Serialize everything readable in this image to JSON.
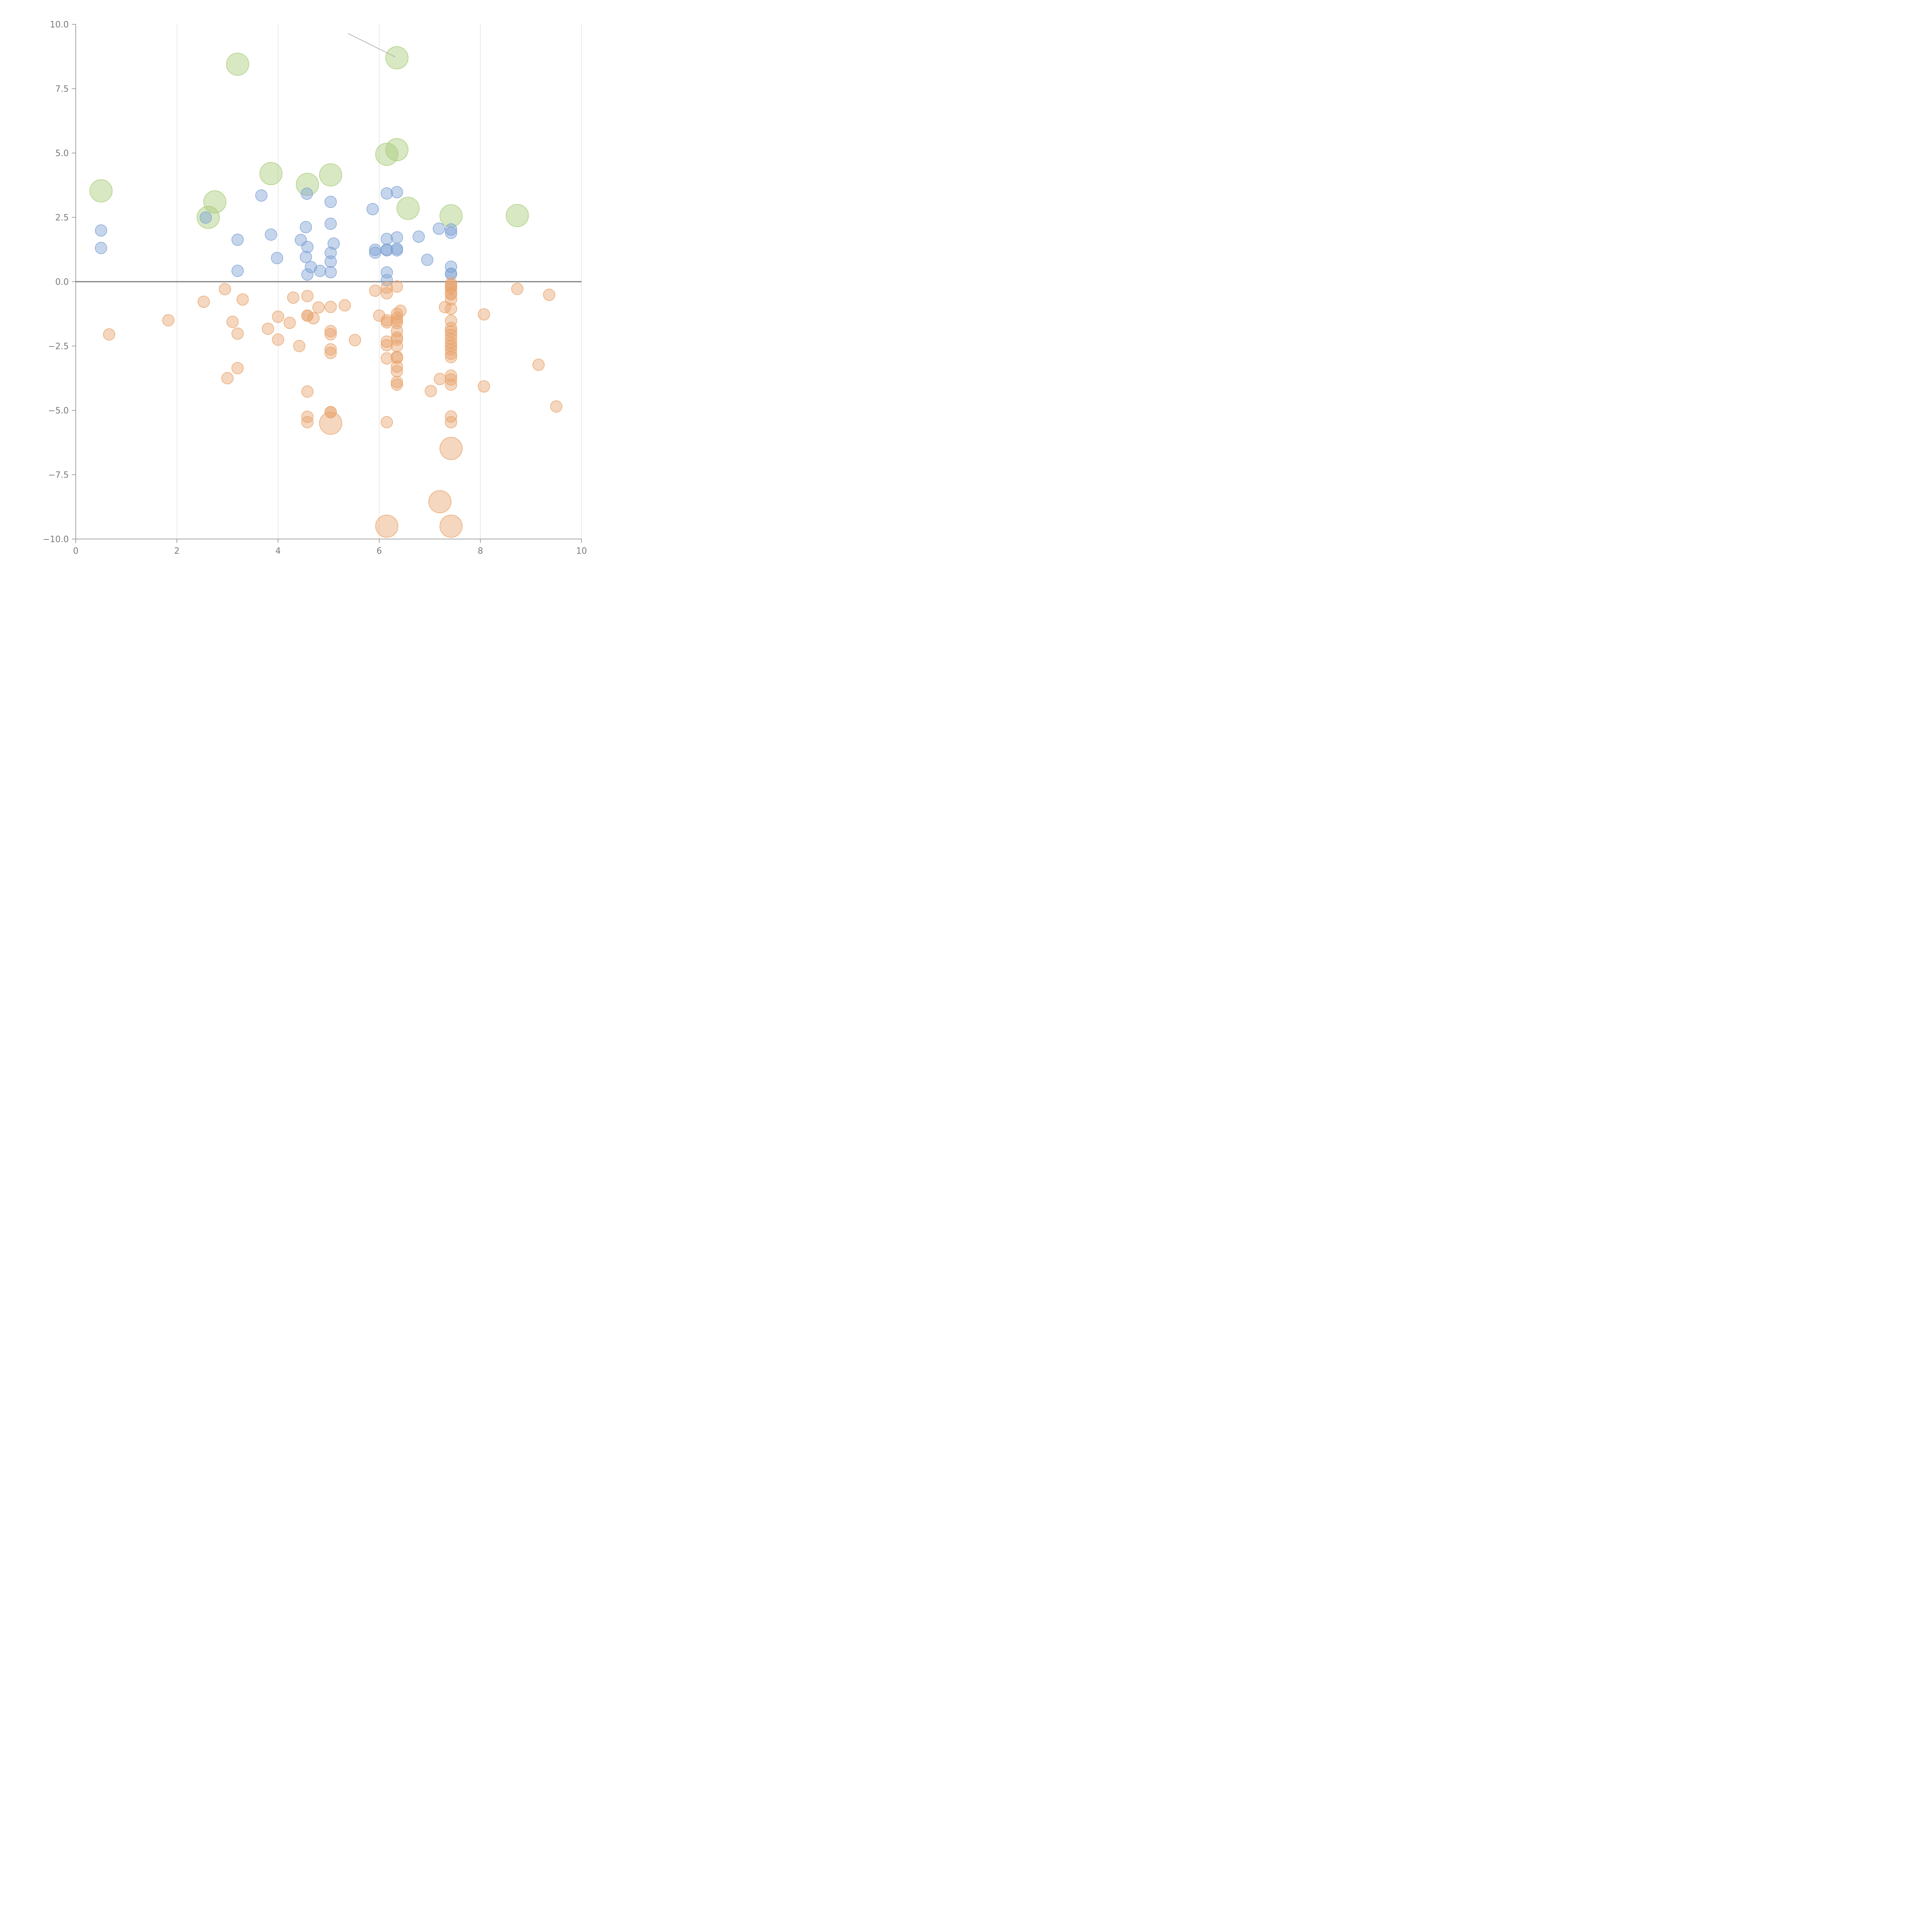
{
  "chart_data": {
    "type": "scatter",
    "title": "",
    "xlabel": "",
    "ylabel": "",
    "xlim": [
      0,
      10
    ],
    "ylim": [
      -10,
      10
    ],
    "x_ticks": [
      0,
      2,
      4,
      6,
      8,
      10
    ],
    "x_tick_labels": [
      "0",
      "2",
      "4",
      "6",
      "8",
      "10"
    ],
    "y_ticks": [
      10,
      7.5,
      5,
      2.5,
      0,
      -2.5,
      -5,
      -7.5,
      -10
    ],
    "y_tick_labels": [
      "10.0",
      "7.5",
      "5.0",
      "2.5",
      "0.0",
      "−2.5",
      "−5.0",
      "−7.5",
      "−10.0"
    ],
    "grid": "vertical",
    "zero_line": true,
    "bubble_opacity": 0.45,
    "series": [
      {
        "color": "#a9cc79",
        "size": "large",
        "points": [
          [
            0.5,
            3.53
          ],
          [
            3.2,
            8.45
          ],
          [
            2.75,
            3.1
          ],
          [
            2.62,
            2.5
          ],
          [
            3.86,
            4.2
          ],
          [
            4.58,
            3.78
          ],
          [
            5.04,
            4.15
          ],
          [
            6.35,
            8.7
          ],
          [
            6.35,
            5.13
          ],
          [
            6.15,
            4.95
          ],
          [
            6.57,
            2.85
          ],
          [
            7.42,
            2.56
          ],
          [
            8.73,
            2.57
          ]
        ]
      },
      {
        "color": "#7ea2d4",
        "size": "small",
        "points": [
          [
            0.5,
            1.99
          ],
          [
            0.5,
            1.31
          ],
          [
            2.57,
            2.49
          ],
          [
            3.2,
            1.63
          ],
          [
            3.2,
            0.42
          ],
          [
            3.67,
            3.35
          ],
          [
            3.86,
            1.83
          ],
          [
            3.98,
            0.92
          ],
          [
            4.45,
            1.62
          ],
          [
            4.55,
            2.12
          ],
          [
            4.57,
            3.42
          ],
          [
            4.58,
            1.35
          ],
          [
            4.55,
            0.96
          ],
          [
            4.65,
            0.57
          ],
          [
            4.58,
            0.28
          ],
          [
            4.83,
            0.42
          ],
          [
            5.04,
            3.1
          ],
          [
            5.04,
            2.25
          ],
          [
            5.1,
            1.48
          ],
          [
            5.04,
            1.12
          ],
          [
            5.04,
            0.78
          ],
          [
            5.04,
            0.37
          ],
          [
            5.87,
            2.82
          ],
          [
            5.92,
            1.24
          ],
          [
            5.92,
            1.13
          ],
          [
            6.15,
            3.43
          ],
          [
            6.15,
            1.66
          ],
          [
            6.15,
            1.25
          ],
          [
            6.15,
            1.22
          ],
          [
            6.15,
            0.36
          ],
          [
            6.15,
            0.06
          ],
          [
            6.35,
            3.48
          ],
          [
            6.35,
            1.72
          ],
          [
            6.35,
            1.28
          ],
          [
            6.35,
            1.22
          ],
          [
            6.78,
            1.75
          ],
          [
            6.95,
            0.85
          ],
          [
            7.18,
            2.06
          ],
          [
            7.42,
            2.03
          ],
          [
            7.42,
            1.9
          ],
          [
            7.42,
            0.58
          ],
          [
            7.42,
            0.31
          ],
          [
            7.42,
            0.3
          ]
        ]
      },
      {
        "color": "#e8a56e",
        "size": "small",
        "points": [
          [
            0.66,
            -2.05
          ],
          [
            1.83,
            -1.5
          ],
          [
            2.53,
            -0.78
          ],
          [
            2.95,
            -0.29
          ],
          [
            3.1,
            -1.56
          ],
          [
            3.2,
            -2.02
          ],
          [
            3.3,
            -0.69
          ],
          [
            3.2,
            -3.36
          ],
          [
            3.0,
            -3.75
          ],
          [
            3.8,
            -1.83
          ],
          [
            4.0,
            -1.36
          ],
          [
            4.0,
            -2.25
          ],
          [
            4.23,
            -1.6
          ],
          [
            4.3,
            -0.62
          ],
          [
            4.42,
            -2.5
          ],
          [
            4.58,
            -0.56
          ],
          [
            4.58,
            -1.32
          ],
          [
            4.58,
            -1.32
          ],
          [
            4.7,
            -1.42
          ],
          [
            4.8,
            -1.0
          ],
          [
            4.58,
            -4.27
          ],
          [
            4.58,
            -5.25
          ],
          [
            4.58,
            -5.46
          ],
          [
            5.04,
            -0.98
          ],
          [
            5.04,
            -1.92
          ],
          [
            5.04,
            -2.04
          ],
          [
            5.04,
            -2.63
          ],
          [
            5.04,
            -2.77
          ],
          [
            5.04,
            -5.07
          ],
          [
            5.04,
            -5.07
          ],
          [
            5.32,
            -0.92
          ],
          [
            5.52,
            -2.27
          ],
          [
            5.92,
            -0.35
          ],
          [
            6.0,
            -1.32
          ],
          [
            6.15,
            -0.23
          ],
          [
            6.15,
            -0.45
          ],
          [
            6.15,
            -1.5
          ],
          [
            6.15,
            -1.58
          ],
          [
            6.15,
            -2.33
          ],
          [
            6.15,
            -2.47
          ],
          [
            6.15,
            -2.98
          ],
          [
            6.15,
            -5.46
          ],
          [
            6.35,
            -0.19
          ],
          [
            6.35,
            -1.25
          ],
          [
            6.35,
            -1.4
          ],
          [
            6.35,
            -1.5
          ],
          [
            6.35,
            -1.6
          ],
          [
            6.35,
            -1.92
          ],
          [
            6.35,
            -2.17
          ],
          [
            6.35,
            -2.25
          ],
          [
            6.35,
            -2.5
          ],
          [
            6.35,
            -2.92
          ],
          [
            6.35,
            -2.96
          ],
          [
            6.35,
            -3.3
          ],
          [
            6.35,
            -3.48
          ],
          [
            6.35,
            -3.9
          ],
          [
            6.35,
            -4.0
          ],
          [
            6.42,
            -1.13
          ],
          [
            7.02,
            -4.25
          ],
          [
            7.2,
            -3.78
          ],
          [
            7.3,
            -0.99
          ],
          [
            7.42,
            -0.06
          ],
          [
            7.42,
            -0.14
          ],
          [
            7.42,
            -0.2
          ],
          [
            7.42,
            -0.28
          ],
          [
            7.42,
            -0.45
          ],
          [
            7.42,
            -0.5
          ],
          [
            7.42,
            -0.69
          ],
          [
            7.42,
            -1.05
          ],
          [
            7.42,
            -1.52
          ],
          [
            7.42,
            -1.8
          ],
          [
            7.42,
            -1.93
          ],
          [
            7.42,
            -2.07
          ],
          [
            7.42,
            -2.22
          ],
          [
            7.42,
            -2.38
          ],
          [
            7.42,
            -2.5
          ],
          [
            7.42,
            -2.63
          ],
          [
            7.42,
            -2.8
          ],
          [
            7.42,
            -2.93
          ],
          [
            7.42,
            -3.65
          ],
          [
            7.42,
            -3.8
          ],
          [
            7.42,
            -4.0
          ],
          [
            7.42,
            -5.24
          ],
          [
            7.42,
            -5.46
          ],
          [
            8.07,
            -1.27
          ],
          [
            8.07,
            -4.07
          ],
          [
            8.73,
            -0.28
          ],
          [
            9.15,
            -3.23
          ],
          [
            9.36,
            -0.51
          ],
          [
            9.5,
            -4.85
          ]
        ]
      },
      {
        "color": "#e8a56e",
        "size": "large",
        "points": [
          [
            5.04,
            -5.5
          ],
          [
            7.42,
            -6.48
          ],
          [
            7.2,
            -8.55
          ],
          [
            6.15,
            -9.5
          ],
          [
            7.42,
            -9.5
          ]
        ]
      }
    ],
    "annotations": [
      {
        "type": "leader-line",
        "from": [
          5.38,
          9.65
        ],
        "to": [
          6.32,
          8.73
        ]
      }
    ]
  }
}
